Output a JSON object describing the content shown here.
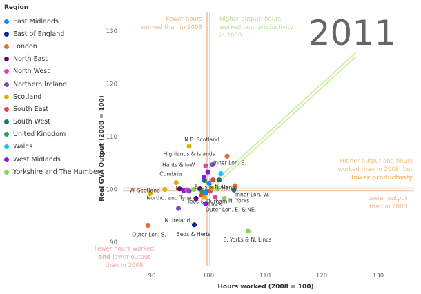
{
  "legend": {
    "title": "Region",
    "items": [
      {
        "label": "East Midlands",
        "color": "#118DFF"
      },
      {
        "label": "East of England",
        "color": "#12239E"
      },
      {
        "label": "London",
        "color": "#E66C37"
      },
      {
        "label": "North East",
        "color": "#6B007B"
      },
      {
        "label": "North West",
        "color": "#E044A7"
      },
      {
        "label": "Northern Ireland",
        "color": "#744EC2"
      },
      {
        "label": "Scotland",
        "color": "#D9B300"
      },
      {
        "label": "South East",
        "color": "#D64550"
      },
      {
        "label": "South West",
        "color": "#197278"
      },
      {
        "label": "United Kingdom",
        "color": "#1AAB40"
      },
      {
        "label": "Wales",
        "color": "#15C6F4"
      },
      {
        "label": "West Midlands",
        "color": "#8A16EA"
      },
      {
        "label": "Yorkshire and The Humber",
        "color": "#8AD459"
      }
    ]
  },
  "chart_data": {
    "type": "scatter",
    "year": "2011",
    "xlabel": "Hours worked (2008 = 100)",
    "ylabel": "Real GVA Output (2008 = 100)",
    "xlim": [
      85,
      135
    ],
    "ylim": [
      86,
      133
    ],
    "xticks": [
      90,
      100,
      110,
      120,
      130
    ],
    "yticks": [
      90,
      100,
      110,
      120,
      130
    ],
    "reference_lines": {
      "vertical_x": 100,
      "horizontal_y": 100,
      "diagonal_from": [
        100,
        100
      ],
      "diagonal_to": [
        126,
        125.5
      ],
      "vertical_color": "#F6BE95",
      "horizontal_color": "#F6BE95",
      "diagonal_color": "#C8EE9A"
    },
    "annotations": [
      {
        "id": "fewer-hours-more-output",
        "lines": [
          "Fewer hours",
          "worked than in 2008"
        ],
        "color": "#F0B48A",
        "bold_line": null
      },
      {
        "id": "higher-all",
        "lines": [
          "Higher output, hours",
          "worked, and productivity",
          "in 2008"
        ],
        "color": "#BFE0A0",
        "bold_line": null
      },
      {
        "id": "higher-lower-productivity",
        "lines": [
          "Higher output and hours",
          "worked than in 2008, but",
          "lower productivity"
        ],
        "color": "#F3C27A",
        "bold_line": 2
      },
      {
        "id": "lower-output",
        "lines": [
          "Lower output",
          "than in 2008"
        ],
        "color": "#F0B48A",
        "bold_line": null
      },
      {
        "id": "fewer-hours-lower-output",
        "lines": [
          "Fewer hours worked",
          "and lower output",
          "than in 2008"
        ],
        "color": "#F2A6A6",
        "bold_word": "and"
      }
    ],
    "points": [
      {
        "x": 100.7,
        "y": 104.7,
        "region": "Northern Ireland",
        "label": ""
      },
      {
        "x": 99.9,
        "y": 103.3,
        "region": "West Midlands",
        "label": ""
      },
      {
        "x": 99.5,
        "y": 104.5,
        "region": "North West",
        "label": ""
      },
      {
        "x": 102.2,
        "y": 103.0,
        "region": "Wales",
        "label": ""
      },
      {
        "x": 103.3,
        "y": 106.3,
        "region": "London",
        "label": "Inner Lon. E."
      },
      {
        "x": 96.6,
        "y": 108.2,
        "region": "Scotland",
        "label": "N.E. Scotland"
      },
      {
        "x": 99.2,
        "y": 102.3,
        "region": "West Midlands",
        "label": ""
      },
      {
        "x": 100.8,
        "y": 101.8,
        "region": "South East",
        "label": ""
      },
      {
        "x": 101.9,
        "y": 101.8,
        "region": "South West",
        "label": ""
      },
      {
        "x": 94.3,
        "y": 101.3,
        "region": "Scotland",
        "label": ""
      },
      {
        "x": 99.3,
        "y": 101.7,
        "region": "South West",
        "label": ""
      },
      {
        "x": 100.1,
        "y": 101.2,
        "region": "East Midlands",
        "label": "Beds & Notts"
      },
      {
        "x": 104.7,
        "y": 100.7,
        "region": "London",
        "label": ""
      },
      {
        "x": 92.3,
        "y": 100.0,
        "region": "Scotland",
        "label": "W. Scotland"
      },
      {
        "x": 94.9,
        "y": 100.1,
        "region": "North East",
        "label": ""
      },
      {
        "x": 95.6,
        "y": 99.8,
        "region": "West Midlands",
        "label": ""
      },
      {
        "x": 96.2,
        "y": 99.9,
        "region": "North West",
        "label": ""
      },
      {
        "x": 96.6,
        "y": 99.7,
        "region": "Northern Ireland",
        "label": ""
      },
      {
        "x": 97.4,
        "y": 100.0,
        "region": "Yorkshire and The Humber",
        "label": ""
      },
      {
        "x": 98.5,
        "y": 100.1,
        "region": "North East",
        "label": ""
      },
      {
        "x": 98.9,
        "y": 99.6,
        "region": "United Kingdom",
        "label": ""
      },
      {
        "x": 99.6,
        "y": 99.6,
        "region": "South West",
        "label": ""
      },
      {
        "x": 100.3,
        "y": 99.7,
        "region": "South East",
        "label": ""
      },
      {
        "x": 100.6,
        "y": 100.2,
        "region": "Scotland",
        "label": ""
      },
      {
        "x": 101.6,
        "y": 100.1,
        "region": "Yorkshire and The Humber",
        "label": "Hants"
      },
      {
        "x": 104.5,
        "y": 99.9,
        "region": "South West",
        "label": "Inner Lon. W."
      },
      {
        "x": 101.2,
        "y": 98.5,
        "region": "North West",
        "label": ""
      },
      {
        "x": 102.8,
        "y": 98.3,
        "region": "Yorkshire and The Humber",
        "label": "N. Yorks"
      },
      {
        "x": 89.7,
        "y": 99.2,
        "region": "Scotland",
        "label": "Northd. and Tyne"
      },
      {
        "x": 97.8,
        "y": 98.3,
        "region": "North East",
        "label": ""
      },
      {
        "x": 98.8,
        "y": 98.9,
        "region": "South East",
        "label": ""
      },
      {
        "x": 99.3,
        "y": 98.5,
        "region": "Scotland",
        "label": ""
      },
      {
        "x": 99.5,
        "y": 97.3,
        "region": "West Midlands",
        "label": "Lincs"
      },
      {
        "x": 94.7,
        "y": 96.4,
        "region": "Northern Ireland",
        "label": "N. Ireland"
      },
      {
        "x": 89.3,
        "y": 93.2,
        "region": "London",
        "label": "Outer Lon. S."
      },
      {
        "x": 97.5,
        "y": 93.3,
        "region": "East of England",
        "label": "Beds & Herts"
      },
      {
        "x": 107.0,
        "y": 92.1,
        "region": "Yorkshire and The Humber",
        "label": "E. Yorks & N. Lincs"
      },
      {
        "x": 99.5,
        "y": 99.3,
        "region": "East Midlands",
        "label": ""
      }
    ],
    "free_labels": [
      {
        "text": "Highlands & Islands",
        "x": 96.6,
        "y": 106.4
      },
      {
        "text": "Hants & IoW",
        "x": 97.6,
        "y": 104.3
      },
      {
        "text": "Cumbria",
        "x": 95.3,
        "y": 102.6
      },
      {
        "text": "Ly",
        "x": 95.2,
        "y": 99.9
      },
      {
        "text": "Tees & Durham",
        "x": 96.4,
        "y": 97.4
      },
      {
        "text": "Outer Lon. E. & NE.",
        "x": 99.5,
        "y": 95.8
      }
    ]
  }
}
